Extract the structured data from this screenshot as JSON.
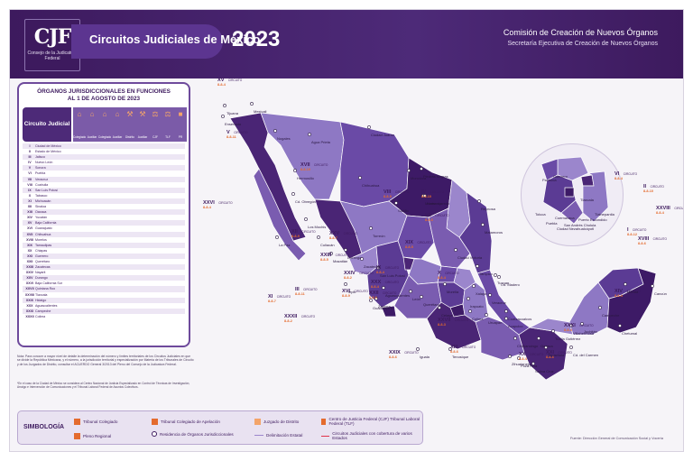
{
  "header": {
    "logo_mark": "CJF",
    "logo_sub": "Consejo de la Judicatura Federal",
    "title": "Circuitos Judiciales de México",
    "year": "2023",
    "org_line1": "Comisión de Creación de Nuevos Órganos",
    "org_line2": "Secretaría Ejecutiva de Creación de Nuevos Órganos"
  },
  "panel": {
    "title_line1": "ÓRGANOS JURISDICCIONALES EN FUNCIONES",
    "title_line2": "AL 1 DE AGOSTO DE 2023",
    "col_circuit": "Circuito Judicial",
    "col_labels": [
      "Colegiado",
      "Auxiliar",
      "Colegiado",
      "Auxiliar",
      "Distrito",
      "Auxiliar",
      "CJF",
      "TLF",
      "PR"
    ],
    "rows": [
      {
        "num": "I",
        "name": "Ciudad de México"
      },
      {
        "num": "II",
        "name": "Estado de México"
      },
      {
        "num": "III",
        "name": "Jalisco"
      },
      {
        "num": "IV",
        "name": "Nuevo León"
      },
      {
        "num": "V",
        "name": "Sonora"
      },
      {
        "num": "VI",
        "name": "Puebla"
      },
      {
        "num": "VII",
        "name": "Veracruz"
      },
      {
        "num": "VIII",
        "name": "Coahuila"
      },
      {
        "num": "IX",
        "name": "San Luis Potosí"
      },
      {
        "num": "X",
        "name": "Tabasco"
      },
      {
        "num": "XI",
        "name": "Michoacán"
      },
      {
        "num": "XII",
        "name": "Sinaloa"
      },
      {
        "num": "XIII",
        "name": "Oaxaca"
      },
      {
        "num": "XIV",
        "name": "Yucatán"
      },
      {
        "num": "XV",
        "name": "Baja California"
      },
      {
        "num": "XVI",
        "name": "Guanajuato"
      },
      {
        "num": "XVII",
        "name": "Chihuahua"
      },
      {
        "num": "XVIII",
        "name": "Morelos"
      },
      {
        "num": "XIX",
        "name": "Tamaulipas"
      },
      {
        "num": "XX",
        "name": "Chiapas"
      },
      {
        "num": "XXI",
        "name": "Guerrero"
      },
      {
        "num": "XXII",
        "name": "Querétaro"
      },
      {
        "num": "XXIII",
        "name": "Zacatecas"
      },
      {
        "num": "XXIV",
        "name": "Nayarit"
      },
      {
        "num": "XXV",
        "name": "Durango"
      },
      {
        "num": "XXVI",
        "name": "Baja California Sur"
      },
      {
        "num": "XXVII",
        "name": "Quintana Roo"
      },
      {
        "num": "XXVIII",
        "name": "Tlaxcala"
      },
      {
        "num": "XXIX",
        "name": "Hidalgo"
      },
      {
        "num": "XXX",
        "name": "Aguascalientes"
      },
      {
        "num": "XXXI",
        "name": "Campeche"
      },
      {
        "num": "XXXII",
        "name": "Colima"
      }
    ]
  },
  "note": {
    "text": "Nota: Para conocer a mayor nivel de detalle la determinación del número y límites territoriales de los Circuitos Judiciales en que se divide la República Mexicana, y el número, a la jurisdicción territorial y especialización por Materia de los Tribunales de Circuito y de los Juzgados de Distrito, consultar el ACUERDO General 3/2013 del Pleno del Consejo de la Judicatura Federal.",
    "text2": "*En el caso de la Ciudad de México se considera al Centro Nacional de Justicia Especializado en Control de Técnicas de Investigación, Arraigo e Intervención de Comunicaciones y el Tribunal Laboral Federal de Asuntos Colectivos."
  },
  "legend": {
    "title": "SIMBOLOGÍA",
    "items": [
      "Tribunal Colegiado",
      "Tribunal Colegiado de Apelación",
      "Juzgado de Distrito",
      "Centro de Justicia Federal (CJF) Tribunal Laboral Federal (TLF)",
      "Pleno Regional",
      "Residencia de Órganos Jurisdiccionales",
      "Delimitación Estatal",
      "Circuitos Judiciales con cobertura de varios Estados"
    ]
  },
  "credit": "Fuente: Dirección General de Comunicación Social y Vocería",
  "map": {
    "circuit_word": "CIRCUITO",
    "circuits": [
      {
        "num": "XV",
        "code": "8-8-4"
      },
      {
        "num": "XVII",
        "code": "8-8-10"
      },
      {
        "num": "VIII",
        "code": "8-8-9"
      },
      {
        "num": "XXVI",
        "code": "8-8-4"
      },
      {
        "num": "V",
        "code": "8-8-11"
      },
      {
        "num": "IV",
        "code": "8-8-10"
      },
      {
        "num": "XII",
        "code": "8-8-9"
      },
      {
        "num": "XXV",
        "code": "8-8-7"
      },
      {
        "num": "XIX",
        "code": "8-8-5"
      },
      {
        "num": "XXIII",
        "code": "8-8-5"
      },
      {
        "num": "IX",
        "code": "8-8-4"
      },
      {
        "num": "XXX",
        "code": "8-8-4"
      },
      {
        "num": "XXIV",
        "code": "8-8-2"
      },
      {
        "num": "XXII",
        "code": "8-8-6"
      },
      {
        "num": "XVI",
        "code": "8-8-9"
      },
      {
        "num": "III",
        "code": "8-8-11"
      },
      {
        "num": "XI",
        "code": "8-8-7"
      },
      {
        "num": "XXXII",
        "code": "8-8-2"
      },
      {
        "num": "VII",
        "code": "8-8-6"
      },
      {
        "num": "X",
        "code": "8-8-4"
      },
      {
        "num": "XIV",
        "code": "8-8-4"
      },
      {
        "num": "XXXI",
        "code": "8-8-4"
      },
      {
        "num": "XXVII",
        "code": "8-8-3"
      },
      {
        "num": "XIII",
        "code": "8-8-6"
      },
      {
        "num": "XX",
        "code": "8-8-4"
      },
      {
        "num": "XXI",
        "code": "8-8-6"
      },
      {
        "num": "XXIX",
        "code": "8-8-6"
      },
      {
        "num": "XXVIII",
        "code": "8-8-4"
      },
      {
        "num": "VI",
        "code": "8-8-4"
      },
      {
        "num": "II",
        "code": "8-8-10"
      },
      {
        "num": "I",
        "code": "8-8-12"
      },
      {
        "num": "XVIII",
        "code": "8-8-6"
      }
    ],
    "cities": [
      "Tijuana",
      "Mexicali",
      "Ensenada",
      "Nogales",
      "Agua Prieta",
      "Ciudad Juárez",
      "Hermosillo",
      "Chihuahua",
      "Cd. Obregón",
      "La Paz",
      "Los Mochis",
      "Culiacán",
      "Mazatlán",
      "Durango",
      "Torreón",
      "Saltillo",
      "Monterrey",
      "Nuevo Laredo",
      "Reynosa",
      "Matamoros",
      "Zacatecas",
      "San Luis Potosí",
      "Tepic",
      "Aguascalientes",
      "Guadalajara",
      "León",
      "Querétaro",
      "Morelia",
      "Colima",
      "Uruapan",
      "Acapulco",
      "Chilpancingo",
      "Oaxaca",
      "Tuxtla Gutiérrez",
      "Tapachula",
      "Villahermosa",
      "Campeche",
      "Mérida",
      "Cancún",
      "Chetumal",
      "Veracruz",
      "Xalapa",
      "Coatzacoalcos",
      "Puebla",
      "Pachuca",
      "Tlaxcala",
      "Toluca",
      "Cuernavaca",
      "Tampico",
      "Ciudad Victoria",
      "Piedras Negras",
      "Monclova",
      "Zamora",
      "Celaya",
      "Irapuato",
      "Cd. Madero",
      "Tuxpan",
      "Poza Rica",
      "Salina Cruz",
      "Juchitán",
      "Cd. del Carmen",
      "Tenosique",
      "Iguala",
      "Zihuatanejo",
      "Puerto Escondido",
      "Ciudad Nezahualcóyotl",
      "San Andrés Cholula",
      "Guerrero",
      "Tlalnepantla"
    ]
  }
}
